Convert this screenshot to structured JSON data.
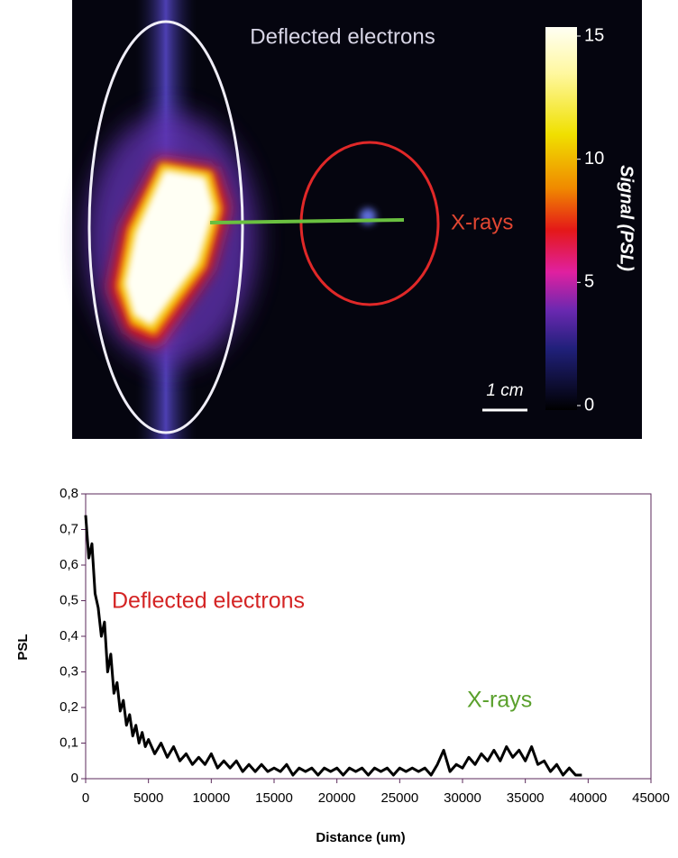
{
  "chart_data": [
    {
      "type": "image",
      "annotations": [
        "Deflected electrons",
        "X-rays"
      ],
      "scale_bar": "1 cm",
      "colorbar": {
        "label": "Signal (PSL)",
        "lim": [
          0,
          15
        ],
        "ticks": [
          0,
          5,
          10,
          15
        ]
      }
    },
    {
      "type": "line",
      "xlabel": "Distance (um)",
      "ylabel": "PSL",
      "annotations": [
        "Deflected electrons",
        "X-rays"
      ],
      "xlim": [
        0,
        45000
      ],
      "ylim": [
        0,
        0.8
      ],
      "xticks": [
        0,
        5000,
        10000,
        15000,
        20000,
        25000,
        30000,
        35000,
        40000,
        45000
      ],
      "yticks": [
        0,
        {
          "value": 0.1,
          "label": "0,1"
        },
        {
          "value": 0.2,
          "label": "0,2"
        },
        {
          "value": 0.3,
          "label": "0,3"
        },
        {
          "value": 0.4,
          "label": "0,4"
        },
        {
          "value": 0.5,
          "label": "0,5"
        },
        {
          "value": 0.6,
          "label": "0,6"
        },
        {
          "value": 0.7,
          "label": "0,7"
        },
        {
          "value": 0.8,
          "label": "0,8"
        }
      ],
      "color": "#000000",
      "x": [
        0,
        250,
        500,
        750,
        1000,
        1250,
        1500,
        1750,
        2000,
        2250,
        2500,
        2750,
        3000,
        3250,
        3500,
        3750,
        4000,
        4250,
        4500,
        4750,
        5000,
        5500,
        6000,
        6500,
        7000,
        7500,
        8000,
        8500,
        9000,
        9500,
        10000,
        10500,
        11000,
        11500,
        12000,
        12500,
        13000,
        13500,
        14000,
        14500,
        15000,
        15500,
        16000,
        16500,
        17000,
        17500,
        18000,
        18500,
        19000,
        19500,
        20000,
        20500,
        21000,
        21500,
        22000,
        22500,
        23000,
        23500,
        24000,
        24500,
        25000,
        25500,
        26000,
        26500,
        27000,
        27500,
        28000,
        28500,
        29000,
        29500,
        30000,
        30500,
        31000,
        31500,
        32000,
        32500,
        33000,
        33500,
        34000,
        34500,
        35000,
        35500,
        36000,
        36500,
        37000,
        37500,
        38000,
        38500,
        39000,
        39500
      ],
      "values": [
        0.74,
        0.62,
        0.66,
        0.52,
        0.48,
        0.4,
        0.44,
        0.3,
        0.35,
        0.24,
        0.27,
        0.19,
        0.22,
        0.15,
        0.18,
        0.12,
        0.15,
        0.1,
        0.13,
        0.09,
        0.11,
        0.07,
        0.1,
        0.06,
        0.09,
        0.05,
        0.07,
        0.04,
        0.06,
        0.04,
        0.07,
        0.03,
        0.05,
        0.03,
        0.05,
        0.02,
        0.04,
        0.02,
        0.04,
        0.02,
        0.03,
        0.02,
        0.04,
        0.01,
        0.03,
        0.02,
        0.03,
        0.01,
        0.03,
        0.02,
        0.03,
        0.01,
        0.03,
        0.02,
        0.03,
        0.01,
        0.03,
        0.02,
        0.03,
        0.01,
        0.03,
        0.02,
        0.03,
        0.02,
        0.03,
        0.01,
        0.04,
        0.08,
        0.02,
        0.04,
        0.03,
        0.06,
        0.04,
        0.07,
        0.05,
        0.08,
        0.05,
        0.09,
        0.06,
        0.08,
        0.05,
        0.09,
        0.04,
        0.05,
        0.02,
        0.04,
        0.01,
        0.03,
        0.01,
        0.01
      ]
    }
  ]
}
